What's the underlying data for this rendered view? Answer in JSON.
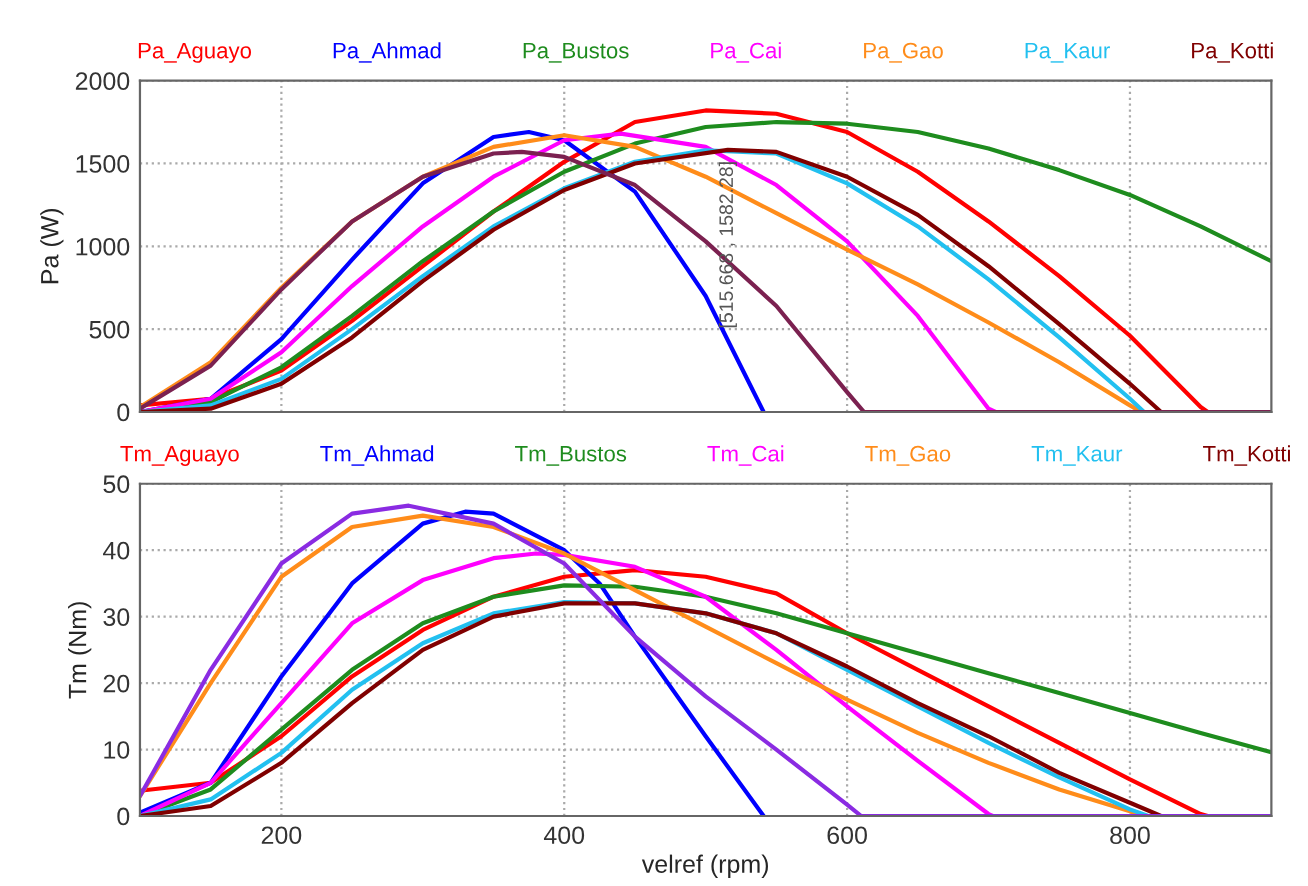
{
  "chart_data": [
    {
      "type": "line",
      "ylabel": "Pa (W)",
      "xlim": [
        100,
        900
      ],
      "xticks": [
        200,
        400,
        600,
        800
      ],
      "ylim": [
        0,
        2000
      ],
      "yticks": [
        0,
        500,
        1000,
        1500,
        2000
      ],
      "tick_labels": "y",
      "grid": true,
      "legend": "top",
      "marker": "none",
      "line_style": "solid",
      "annotations": [
        {
          "text": "[515.668 , 1582.28]",
          "x": 515.668,
          "y": 1582.28
        }
      ],
      "series": [
        {
          "name": "Pa_Aguayo",
          "color": "#ff0000",
          "x": [
            100,
            150,
            200,
            250,
            300,
            350,
            400,
            450,
            500,
            550,
            600,
            650,
            700,
            750,
            800,
            850,
            855
          ],
          "values": [
            40,
            80,
            250,
            550,
            880,
            1210,
            1510,
            1750,
            1820,
            1800,
            1690,
            1450,
            1150,
            820,
            460,
            30,
            0
          ]
        },
        {
          "name": "Pa_Ahmad",
          "color": "#0000ff",
          "x": [
            100,
            150,
            200,
            250,
            300,
            350,
            375,
            400,
            450,
            500,
            541
          ],
          "values": [
            0,
            80,
            440,
            920,
            1380,
            1660,
            1690,
            1640,
            1330,
            700,
            0
          ]
        },
        {
          "name": "Pa_Bustos",
          "color": "#1e8c1e",
          "x": [
            100,
            150,
            200,
            250,
            300,
            350,
            400,
            450,
            500,
            550,
            600,
            650,
            700,
            750,
            800,
            850,
            900
          ],
          "values": [
            0,
            60,
            270,
            580,
            910,
            1210,
            1450,
            1620,
            1720,
            1750,
            1740,
            1690,
            1590,
            1460,
            1310,
            1120,
            910
          ]
        },
        {
          "name": "Pa_Cai",
          "color": "#ff00ff",
          "x": [
            100,
            150,
            200,
            250,
            300,
            350,
            400,
            440,
            500,
            550,
            600,
            650,
            700,
            705
          ],
          "values": [
            0,
            80,
            360,
            760,
            1120,
            1420,
            1640,
            1680,
            1600,
            1370,
            1030,
            580,
            20,
            0
          ]
        },
        {
          "name": "Pa_Gao",
          "color": "#ff8c1a",
          "x": [
            100,
            150,
            200,
            250,
            300,
            350,
            400,
            450,
            500,
            550,
            600,
            650,
            700,
            750,
            800,
            808
          ],
          "values": [
            30,
            300,
            750,
            1150,
            1420,
            1600,
            1670,
            1600,
            1420,
            1200,
            980,
            770,
            540,
            300,
            40,
            0
          ]
        },
        {
          "name": "Pa_Kaur",
          "color": "#22c0f0",
          "x": [
            100,
            150,
            200,
            250,
            300,
            350,
            400,
            450,
            500,
            550,
            600,
            650,
            700,
            750,
            800,
            810
          ],
          "values": [
            0,
            40,
            200,
            500,
            820,
            1120,
            1350,
            1510,
            1580,
            1560,
            1380,
            1120,
            800,
            450,
            80,
            0
          ]
        },
        {
          "name": "Pa_Kotti",
          "color": "#800000",
          "x": [
            100,
            150,
            200,
            250,
            300,
            350,
            400,
            450,
            515.668,
            550,
            600,
            650,
            700,
            750,
            800,
            822
          ],
          "values": [
            0,
            20,
            170,
            450,
            790,
            1100,
            1340,
            1500,
            1582.28,
            1570,
            1420,
            1190,
            880,
            530,
            170,
            0
          ]
        },
        {
          "color": "#7b2150",
          "x": [
            100,
            150,
            200,
            250,
            300,
            350,
            370,
            400,
            450,
            500,
            550,
            600,
            612,
            700,
            800,
            900
          ],
          "values": [
            20,
            280,
            740,
            1150,
            1420,
            1560,
            1570,
            1540,
            1370,
            1030,
            640,
            120,
            0,
            0,
            0,
            0
          ]
        }
      ]
    },
    {
      "type": "line",
      "xlabel": "velref (rpm)",
      "ylabel": "Tm (Nm)",
      "xlim": [
        100,
        900
      ],
      "xticks": [
        200,
        400,
        600,
        800
      ],
      "ylim": [
        0,
        50
      ],
      "yticks": [
        0,
        10,
        20,
        30,
        40,
        50
      ],
      "grid": true,
      "legend": "top",
      "marker": "none",
      "line_style": "solid",
      "series": [
        {
          "name": "Tm_Aguayo",
          "color": "#ff0000",
          "x": [
            100,
            150,
            200,
            250,
            300,
            350,
            400,
            450,
            500,
            550,
            600,
            650,
            700,
            750,
            800,
            850,
            855
          ],
          "values": [
            3.8,
            5,
            12,
            21,
            28,
            33,
            36,
            37,
            36,
            33.5,
            27.5,
            22,
            16.5,
            11,
            5.5,
            0.3,
            0
          ]
        },
        {
          "name": "Tm_Ahmad",
          "color": "#0000ff",
          "x": [
            100,
            150,
            200,
            250,
            300,
            330,
            350,
            400,
            425,
            450,
            500,
            541
          ],
          "values": [
            0.5,
            5,
            21,
            35,
            44,
            45.8,
            45.5,
            40,
            35,
            27,
            12,
            0
          ]
        },
        {
          "name": "Tm_Bustos",
          "color": "#1e8c1e",
          "x": [
            100,
            150,
            200,
            250,
            300,
            350,
            400,
            450,
            500,
            550,
            600,
            650,
            700,
            750,
            800,
            850,
            900
          ],
          "values": [
            0,
            4,
            13,
            22,
            29,
            33,
            34.7,
            34.5,
            33,
            30.5,
            27.5,
            24.5,
            21.5,
            18.5,
            15.5,
            12.5,
            9.6
          ]
        },
        {
          "name": "Tm_Cai",
          "color": "#ff00ff",
          "x": [
            100,
            150,
            200,
            250,
            300,
            350,
            380,
            400,
            450,
            500,
            550,
            600,
            650,
            700,
            703
          ],
          "values": [
            0,
            5,
            17,
            29,
            35.5,
            38.8,
            39.5,
            39.3,
            37.5,
            33,
            25,
            16.5,
            8.3,
            0.3,
            0
          ]
        },
        {
          "name": "Tm_Gao",
          "color": "#ff8c1a",
          "x": [
            100,
            150,
            200,
            250,
            300,
            350,
            400,
            450,
            500,
            550,
            600,
            650,
            700,
            750,
            800,
            808
          ],
          "values": [
            3,
            20,
            36,
            43.5,
            45.2,
            43.5,
            39.5,
            34,
            28.5,
            23,
            17.5,
            12.5,
            8,
            4,
            0.7,
            0
          ]
        },
        {
          "name": "Tm_Kaur",
          "color": "#22c0f0",
          "x": [
            100,
            150,
            200,
            250,
            300,
            350,
            400,
            450,
            500,
            550,
            600,
            650,
            700,
            750,
            800,
            813
          ],
          "values": [
            0,
            2.5,
            9.5,
            19,
            26,
            30.5,
            32.2,
            32,
            30.5,
            27.5,
            22,
            16.5,
            11,
            5.8,
            1,
            0
          ]
        },
        {
          "name": "Tm_Kotti",
          "color": "#800000",
          "x": [
            100,
            150,
            200,
            250,
            300,
            350,
            400,
            450,
            500,
            550,
            600,
            650,
            700,
            750,
            800,
            822
          ],
          "values": [
            0,
            1.5,
            8,
            17,
            25,
            30,
            32,
            32,
            30.5,
            27.5,
            22.5,
            17,
            12,
            6.5,
            2,
            0
          ]
        },
        {
          "color": "#8a2be2",
          "x": [
            100,
            150,
            200,
            250,
            290,
            350,
            400,
            450,
            500,
            550,
            600,
            610,
            700,
            800,
            900
          ],
          "values": [
            3,
            22,
            38,
            45.5,
            46.7,
            44,
            38,
            27,
            18,
            10,
            1.7,
            0,
            0,
            0,
            0
          ]
        }
      ]
    }
  ]
}
